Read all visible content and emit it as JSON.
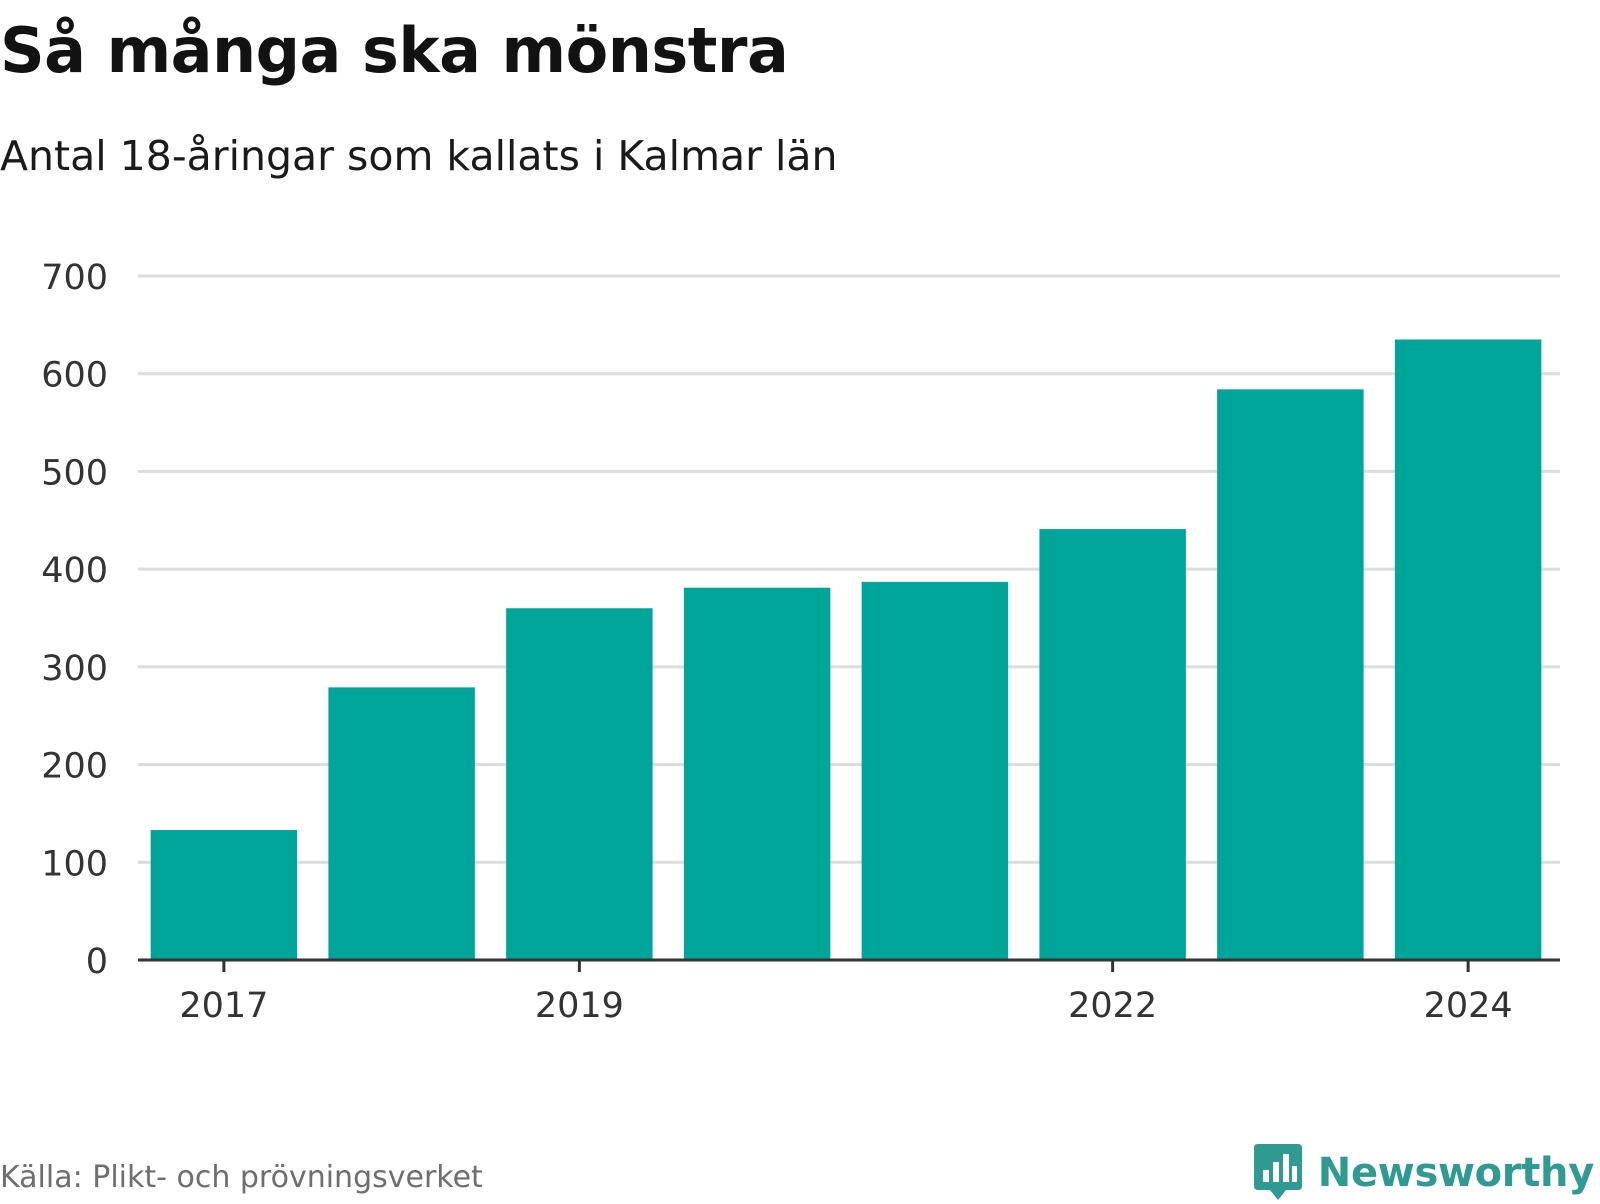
{
  "header": {
    "title": "Så många ska mönstra",
    "subtitle": "Antal 18-åringar som kallats i Kalmar län"
  },
  "footer": {
    "source": "Källa: Plikt- och prövningsverket",
    "brand": "Newsworthy",
    "brand_icon": "bar-chart-speech-bubble-icon"
  },
  "colors": {
    "bar": "#00a59a",
    "grid": "#dcdcdc",
    "axis": "#333333",
    "tick_text": "#333333",
    "brand": "#2e9a91"
  },
  "chart_data": {
    "type": "bar",
    "title": "Så många ska mönstra",
    "subtitle": "Antal 18-åringar som kallats i Kalmar län",
    "categories": [
      "2017",
      "2018",
      "2019",
      "2020",
      "2021",
      "2022",
      "2023",
      "2024"
    ],
    "values": [
      133,
      279,
      360,
      381,
      387,
      441,
      584,
      635
    ],
    "x_tick_labels": [
      "2017",
      "2019",
      "2022",
      "2024"
    ],
    "y_ticks": [
      0,
      100,
      200,
      300,
      400,
      500,
      600,
      700
    ],
    "ylim": [
      0,
      700
    ],
    "xlabel": "",
    "ylabel": "",
    "grid": true,
    "legend": "none"
  }
}
